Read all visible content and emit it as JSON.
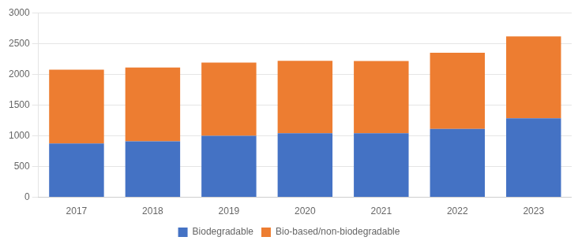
{
  "chart_data": {
    "type": "bar",
    "stacked": true,
    "categories": [
      "2017",
      "2018",
      "2019",
      "2020",
      "2021",
      "2022",
      "2023"
    ],
    "series": [
      {
        "name": "Biodegradable",
        "color": "#4472C4",
        "values": [
          875,
          910,
          1000,
          1040,
          1040,
          1110,
          1285
        ]
      },
      {
        "name": "Bio-based/non-biodegradable",
        "color": "#ED7D31",
        "values": [
          1200,
          1200,
          1190,
          1180,
          1175,
          1240,
          1330
        ]
      }
    ],
    "ylim": [
      0,
      3000
    ],
    "yticks": [
      0,
      500,
      1000,
      1500,
      2000,
      2500,
      3000
    ],
    "grid": true,
    "legend": "bottom"
  }
}
